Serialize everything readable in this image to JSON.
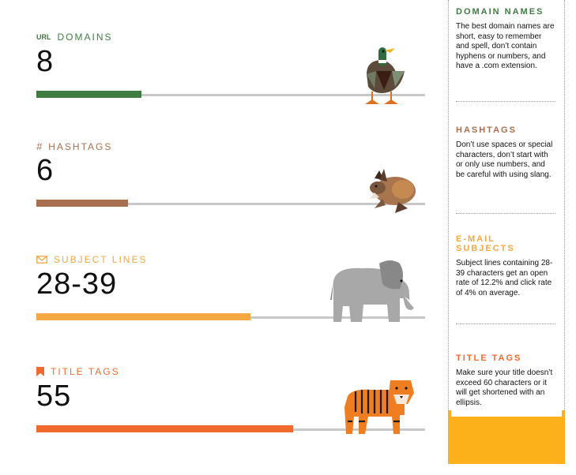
{
  "rows": [
    {
      "label": "DOMAINS",
      "prefix": "URL",
      "value": "8",
      "fill": 0.27,
      "color": "#3f7c42",
      "animal": "duck",
      "icon": "url-text-icon"
    },
    {
      "label": "HASHTAGS",
      "prefix": "#",
      "value": "6",
      "fill": 0.235,
      "color": "#a86f4f",
      "animal": "rabbit",
      "icon": "hash-icon"
    },
    {
      "label": "SUBJECT LINES",
      "prefix": "",
      "value": "28-39",
      "fill": 0.55,
      "color": "#f5a742",
      "animal": "elephant",
      "icon": "envelope-icon"
    },
    {
      "label": "TITLE TAGS",
      "prefix": "",
      "value": "55",
      "fill": 0.66,
      "color": "#ef6a2c",
      "animal": "tiger",
      "icon": "bookmark-icon"
    }
  ],
  "sidebar": [
    {
      "title": "DOMAIN NAMES",
      "color": "#3f7c42",
      "text": "The best domain names are short, easy to remember and spell, don’t contain hyphens or numbers, and have a .com extension."
    },
    {
      "title": "HASHTAGS",
      "color": "#a86f4f",
      "text": "Don’t use spaces or special characters, don’t start with or only use numbers, and be careful with using slang."
    },
    {
      "title": "E-MAIL SUBJECTS",
      "color": "#f5a742",
      "text": "Subject lines containing 28-39 characters get an open rate of 12.2% and click rate of 4% on average."
    },
    {
      "title": "TITLE TAGS",
      "color": "#ef6a2c",
      "text": "Make sure your title doesn’t exceed 60 characters or it will get shortened with an ellipsis."
    }
  ]
}
